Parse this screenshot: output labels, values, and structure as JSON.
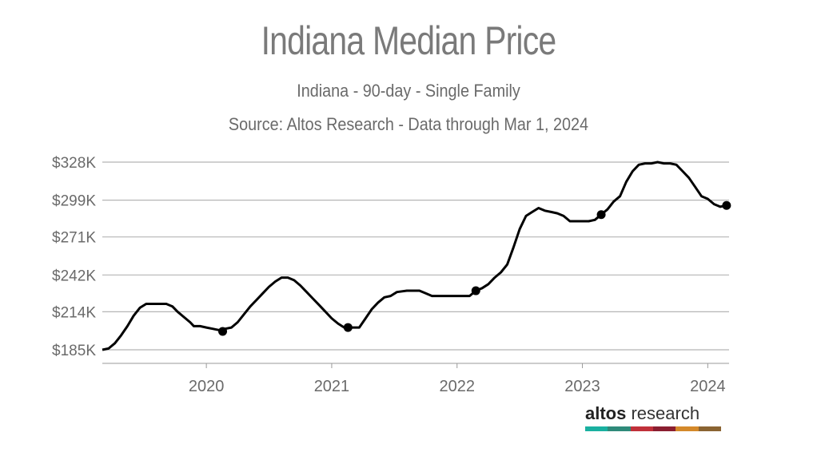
{
  "chart_data": {
    "type": "line",
    "title": "Indiana Median Price",
    "subtitle": "Indiana - 90-day - Single Family",
    "source": "Source: Altos Research - Data through Mar 1, 2024",
    "xlabel": "",
    "ylabel": "",
    "ylim": [
      180000,
      331000
    ],
    "xlim": [
      2019.17,
      2024.17
    ],
    "y_ticks": [
      185000,
      214000,
      242000,
      271000,
      299000,
      328000
    ],
    "y_tick_labels": [
      "$185K",
      "$214K",
      "$242K",
      "$271K",
      "$299K",
      "$328K"
    ],
    "x_ticks": [
      2020,
      2021,
      2022,
      2023,
      2024
    ],
    "x_tick_labels": [
      "2020",
      "2021",
      "2022",
      "2023",
      "2024"
    ],
    "grid": "horizontal",
    "series": [
      {
        "name": "Median Price",
        "color": "#000000",
        "points": [
          [
            2019.17,
            185000
          ],
          [
            2019.22,
            186000
          ],
          [
            2019.27,
            190000
          ],
          [
            2019.32,
            196000
          ],
          [
            2019.37,
            203000
          ],
          [
            2019.42,
            211000
          ],
          [
            2019.47,
            217000
          ],
          [
            2019.52,
            220000
          ],
          [
            2019.6,
            220000
          ],
          [
            2019.68,
            220000
          ],
          [
            2019.73,
            218000
          ],
          [
            2019.77,
            214000
          ],
          [
            2019.82,
            210000
          ],
          [
            2019.87,
            206000
          ],
          [
            2019.9,
            203000
          ],
          [
            2019.95,
            203000
          ],
          [
            2020.0,
            202000
          ],
          [
            2020.05,
            201000
          ],
          [
            2020.1,
            200000
          ],
          [
            2020.15,
            201000
          ],
          [
            2020.2,
            202000
          ],
          [
            2020.25,
            206000
          ],
          [
            2020.3,
            212000
          ],
          [
            2020.35,
            218000
          ],
          [
            2020.4,
            223000
          ],
          [
            2020.45,
            228000
          ],
          [
            2020.5,
            233000
          ],
          [
            2020.55,
            237000
          ],
          [
            2020.6,
            240000
          ],
          [
            2020.65,
            240000
          ],
          [
            2020.7,
            238000
          ],
          [
            2020.75,
            234000
          ],
          [
            2020.8,
            229000
          ],
          [
            2020.85,
            224000
          ],
          [
            2020.9,
            219000
          ],
          [
            2020.95,
            214000
          ],
          [
            2021.0,
            209000
          ],
          [
            2021.05,
            205000
          ],
          [
            2021.1,
            202000
          ],
          [
            2021.15,
            202000
          ],
          [
            2021.22,
            202000
          ],
          [
            2021.27,
            209000
          ],
          [
            2021.32,
            216000
          ],
          [
            2021.37,
            221000
          ],
          [
            2021.42,
            225000
          ],
          [
            2021.47,
            226000
          ],
          [
            2021.52,
            229000
          ],
          [
            2021.6,
            230000
          ],
          [
            2021.7,
            230000
          ],
          [
            2021.75,
            228000
          ],
          [
            2021.8,
            226000
          ],
          [
            2021.9,
            226000
          ],
          [
            2022.0,
            226000
          ],
          [
            2022.1,
            226000
          ],
          [
            2022.15,
            230000
          ],
          [
            2022.2,
            232000
          ],
          [
            2022.25,
            235000
          ],
          [
            2022.3,
            240000
          ],
          [
            2022.35,
            244000
          ],
          [
            2022.4,
            250000
          ],
          [
            2022.45,
            263000
          ],
          [
            2022.5,
            277000
          ],
          [
            2022.55,
            287000
          ],
          [
            2022.6,
            290000
          ],
          [
            2022.65,
            293000
          ],
          [
            2022.7,
            291000
          ],
          [
            2022.75,
            290000
          ],
          [
            2022.8,
            289000
          ],
          [
            2022.85,
            287000
          ],
          [
            2022.9,
            283000
          ],
          [
            2022.95,
            283000
          ],
          [
            2023.0,
            283000
          ],
          [
            2023.05,
            283000
          ],
          [
            2023.1,
            284000
          ],
          [
            2023.15,
            288000
          ],
          [
            2023.2,
            292000
          ],
          [
            2023.25,
            298000
          ],
          [
            2023.3,
            302000
          ],
          [
            2023.35,
            313000
          ],
          [
            2023.4,
            321000
          ],
          [
            2023.45,
            326000
          ],
          [
            2023.5,
            327000
          ],
          [
            2023.55,
            327000
          ],
          [
            2023.6,
            328000
          ],
          [
            2023.65,
            327000
          ],
          [
            2023.7,
            327000
          ],
          [
            2023.75,
            326000
          ],
          [
            2023.8,
            321000
          ],
          [
            2023.85,
            316000
          ],
          [
            2023.9,
            309000
          ],
          [
            2023.95,
            302000
          ],
          [
            2024.0,
            300000
          ],
          [
            2024.05,
            296000
          ],
          [
            2024.1,
            294000
          ],
          [
            2024.15,
            295000
          ]
        ],
        "markers": [
          [
            2020.13,
            199000
          ],
          [
            2021.13,
            202000
          ],
          [
            2022.15,
            230000
          ],
          [
            2023.15,
            288000
          ],
          [
            2024.15,
            295000
          ]
        ]
      }
    ]
  },
  "branding": {
    "logo_bold": "altos",
    "logo_light": " research",
    "logo_colors": [
      "#1ab0a0",
      "#2f8a7a",
      "#c0303a",
      "#8a1e30",
      "#d4892a",
      "#8a6432"
    ]
  }
}
